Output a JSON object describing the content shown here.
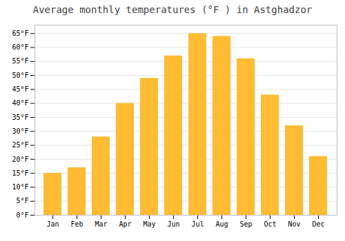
{
  "chart_data": {
    "type": "bar",
    "title": "Average monthly temperatures (°F ) in Astghadzor",
    "categories": [
      "Jan",
      "Feb",
      "Mar",
      "Apr",
      "May",
      "Jun",
      "Jul",
      "Aug",
      "Sep",
      "Oct",
      "Nov",
      "Dec"
    ],
    "values": [
      15,
      17,
      28,
      40,
      49,
      57,
      65,
      64,
      56,
      43,
      32,
      21
    ],
    "color": "#FFBB33",
    "ylim": [
      0,
      68
    ],
    "yticks": [
      {
        "value": 0,
        "label": "0°F"
      },
      {
        "value": 5,
        "label": "5°F"
      },
      {
        "value": 10,
        "label": "10°F"
      },
      {
        "value": 15,
        "label": "15°F"
      },
      {
        "value": 20,
        "label": "20°F"
      },
      {
        "value": 25,
        "label": "25°F"
      },
      {
        "value": 30,
        "label": "30°F"
      },
      {
        "value": 35,
        "label": "35°F"
      },
      {
        "value": 40,
        "label": "40°F"
      },
      {
        "value": 45,
        "label": "45°F"
      },
      {
        "value": 50,
        "label": "50°F"
      },
      {
        "value": 55,
        "label": "55°F"
      },
      {
        "value": 60,
        "label": "60°F"
      },
      {
        "value": 65,
        "label": "65°F"
      }
    ],
    "grid": true
  }
}
